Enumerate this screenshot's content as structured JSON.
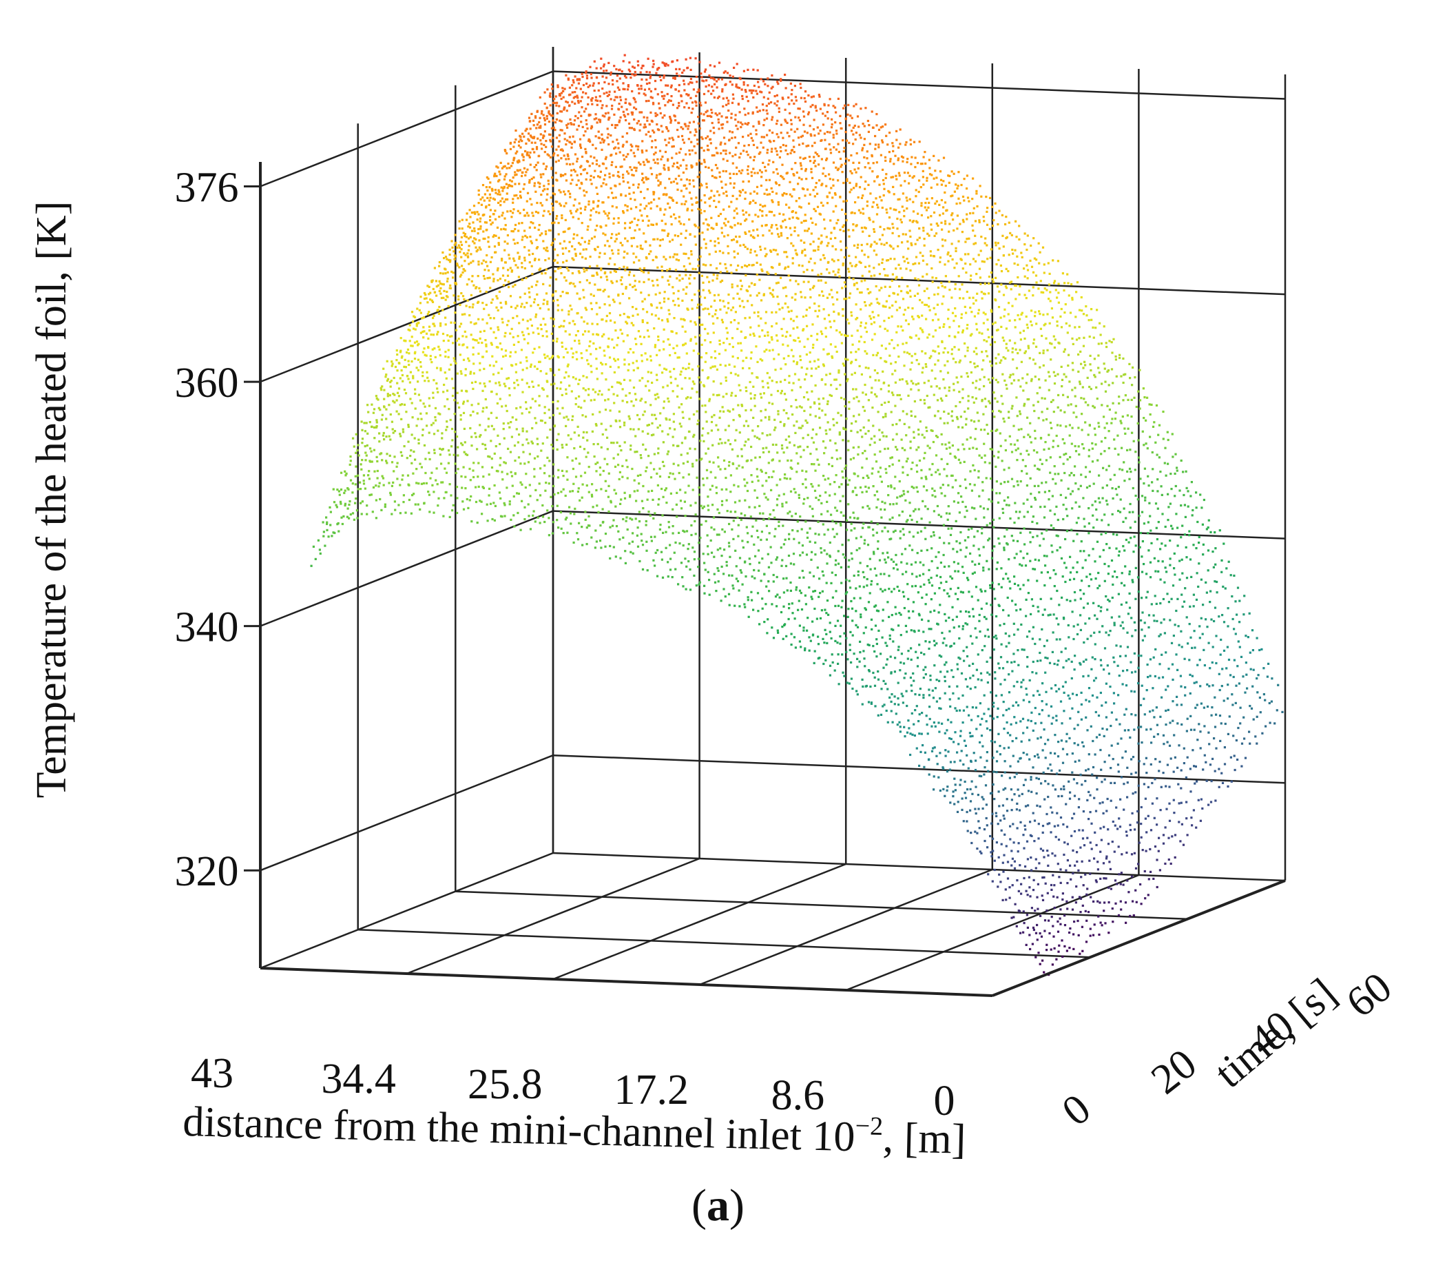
{
  "panel": {
    "label_open": "(",
    "label_letter": "a",
    "label_close": ")"
  },
  "chart_data": {
    "type": "scatter3d",
    "title": "",
    "xlabel": "distance from the mini-channel inlet 10",
    "xlabel_exponent": "−2",
    "xlabel_units": ", [m]",
    "ylabel": "time, [s]",
    "zlabel": "Temperature of the heated foil, [K]",
    "x_ticks": [
      "43",
      "34.4",
      "25.8",
      "17.2",
      "8.6",
      "0"
    ],
    "y_ticks": [
      "0",
      "20",
      "40",
      "60"
    ],
    "z_ticks": [
      "320",
      "340",
      "360",
      "376"
    ],
    "xlim": [
      0,
      43
    ],
    "ylim": [
      0,
      60
    ],
    "zlim": [
      312,
      378
    ],
    "grid": true,
    "colormap": [
      "#440154",
      "#3b528b",
      "#21918c",
      "#27ad50",
      "#7fd13a",
      "#e8e21c",
      "#fca50a",
      "#f0462a"
    ],
    "surface_profiles": [
      {
        "time": 10,
        "distance": [
          43,
          40,
          36,
          30,
          24,
          18,
          12,
          8,
          4,
          1,
          0
        ],
        "temperature": [
          344,
          348,
          348.5,
          347.5,
          345,
          341.5,
          336,
          331,
          323,
          315,
          312
        ]
      },
      {
        "time": 20,
        "distance": [
          43,
          40,
          36,
          30,
          24,
          18,
          12,
          8,
          4,
          1,
          0
        ],
        "temperature": [
          353,
          357,
          357.5,
          356.5,
          353.5,
          349,
          342,
          335,
          325,
          316,
          313
        ]
      },
      {
        "time": 30,
        "distance": [
          43,
          40,
          36,
          30,
          24,
          18,
          12,
          8,
          4,
          1,
          0
        ],
        "temperature": [
          360,
          364,
          364.5,
          363.5,
          360.5,
          355,
          347,
          339,
          328,
          318,
          314
        ]
      },
      {
        "time": 40,
        "distance": [
          43,
          40,
          36,
          30,
          24,
          18,
          12,
          8,
          4,
          1,
          0
        ],
        "temperature": [
          366,
          369.5,
          370,
          369,
          366,
          360.5,
          352,
          344,
          333,
          322,
          318
        ]
      },
      {
        "time": 50,
        "distance": [
          43,
          40,
          36,
          30,
          24,
          18,
          12,
          8,
          4,
          1,
          0
        ],
        "temperature": [
          371,
          373.5,
          374,
          373,
          370,
          364.5,
          356,
          348,
          337,
          326,
          322
        ]
      },
      {
        "time": 60,
        "distance": [
          43,
          40,
          36,
          30,
          24,
          18,
          12,
          8,
          4,
          1,
          0
        ],
        "temperature": [
          375,
          377,
          377.5,
          376.5,
          373.5,
          368,
          360,
          352,
          341,
          330,
          326
        ]
      }
    ]
  }
}
